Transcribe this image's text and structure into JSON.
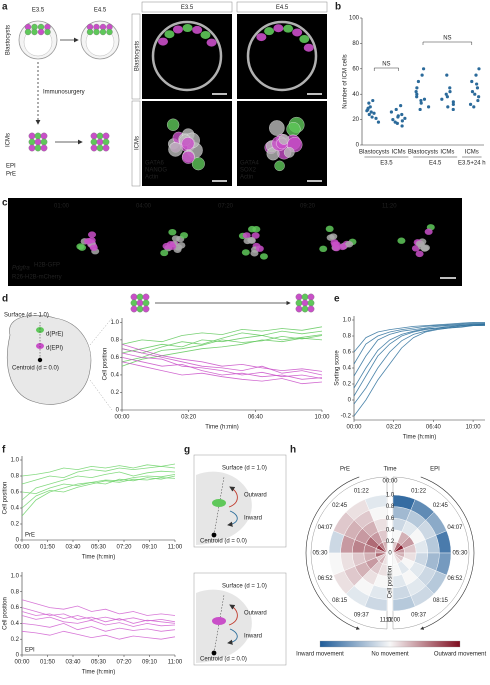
{
  "panel_a": {
    "letter": "a",
    "e35": "E3.5",
    "e45": "E4.5",
    "blastocysts": "Blastocysts",
    "immunosurgery": "Immunosurgery",
    "icms": "ICMs",
    "legend": [
      "EPI",
      "PrE"
    ],
    "col_headers": [
      "E3.5",
      "E4.5"
    ],
    "row_labels": [
      "Blastocysts",
      "ICMs"
    ],
    "stains": [
      [
        "GATA6",
        "NANOG",
        "Actin"
      ],
      [
        "GATA4",
        "SOX2",
        "Actin"
      ]
    ]
  },
  "panel_b": {
    "letter": "b",
    "type": "strip",
    "ylabel": "Number of ICM cells",
    "ylim": [
      0,
      100
    ],
    "yticks": [
      0,
      20,
      40,
      60,
      80,
      100
    ],
    "categories": [
      "Blastocysts",
      "ICMs",
      "Blastocysts",
      "ICMs",
      "ICMs"
    ],
    "groups": [
      "E3.5",
      "E4.5",
      "E3.5+24 h"
    ],
    "annotations": [
      "NS",
      "NS"
    ],
    "color": "#2b6a9a",
    "values": [
      [
        25,
        28,
        22,
        30,
        26,
        18,
        33,
        24,
        27,
        21,
        29,
        35
      ],
      [
        20,
        23,
        17,
        26,
        19,
        22,
        15,
        28,
        21,
        24,
        31,
        18
      ],
      [
        35,
        40,
        30,
        45,
        38,
        50,
        28,
        42,
        36,
        55,
        33,
        60
      ],
      [
        34,
        30,
        40,
        36,
        28,
        45,
        38,
        32,
        42,
        55
      ],
      [
        38,
        45,
        32,
        50,
        40,
        55,
        35,
        42,
        60,
        30,
        48
      ]
    ]
  },
  "panel_c": {
    "letter": "c",
    "times": [
      "01:00",
      "04:00",
      "07:20",
      "09:20",
      "11:20"
    ],
    "label1": "Pdgfra",
    "label1_sup": "H2B-GFP",
    "label2": "R26-H2B-mCherry"
  },
  "panel_d": {
    "letter": "d",
    "type": "line",
    "surface": "Surface (d = 1.0)",
    "centroid": "Centroid (d = 0.0)",
    "dpre": "d(PrE)",
    "depi": "d(EPI)",
    "ylabel": "Cell position",
    "xlabel": "Time (h:min)",
    "xlim": [
      0,
      600
    ],
    "ylim": [
      0,
      1.05
    ],
    "xticks": [
      {
        "value": 0,
        "label": "00:00"
      },
      {
        "value": 200,
        "label": "03:20"
      },
      {
        "value": 400,
        "label": "06:40"
      },
      {
        "value": 600,
        "label": "10:00"
      }
    ],
    "yticks": [
      0,
      0.2,
      0.4,
      0.6,
      0.8,
      {
        "value": 1,
        "label": "1.0"
      }
    ],
    "x": [
      0,
      60,
      120,
      180,
      240,
      300,
      360,
      420,
      480,
      540,
      600
    ],
    "series": [
      {
        "color": "#5fc85a",
        "values": [
          0.65,
          0.7,
          0.75,
          0.72,
          0.8,
          0.78,
          0.82,
          0.85,
          0.8,
          0.83,
          0.86
        ]
      },
      {
        "color": "#5fc85a",
        "values": [
          0.55,
          0.6,
          0.68,
          0.7,
          0.74,
          0.8,
          0.77,
          0.79,
          0.84,
          0.81,
          0.85
        ]
      },
      {
        "color": "#5fc85a",
        "values": [
          0.7,
          0.65,
          0.72,
          0.78,
          0.75,
          0.82,
          0.88,
          0.85,
          0.9,
          0.87,
          0.9
        ]
      },
      {
        "color": "#5fc85a",
        "values": [
          0.5,
          0.58,
          0.62,
          0.66,
          0.7,
          0.72,
          0.75,
          0.8,
          0.78,
          0.82,
          0.8
        ]
      },
      {
        "color": "#5fc85a",
        "values": [
          0.75,
          0.8,
          0.78,
          0.85,
          0.88,
          0.86,
          0.92,
          0.9,
          0.93,
          0.91,
          0.95
        ]
      },
      {
        "color": "#c94fc8",
        "values": [
          0.7,
          0.65,
          0.6,
          0.55,
          0.5,
          0.48,
          0.45,
          0.5,
          0.42,
          0.45,
          0.4
        ]
      },
      {
        "color": "#c94fc8",
        "values": [
          0.6,
          0.55,
          0.5,
          0.52,
          0.45,
          0.4,
          0.42,
          0.38,
          0.4,
          0.35,
          0.37
        ]
      },
      {
        "color": "#c94fc8",
        "values": [
          0.75,
          0.68,
          0.62,
          0.58,
          0.55,
          0.5,
          0.52,
          0.48,
          0.45,
          0.47,
          0.44
        ]
      },
      {
        "color": "#c94fc8",
        "values": [
          0.55,
          0.5,
          0.45,
          0.4,
          0.42,
          0.38,
          0.35,
          0.33,
          0.36,
          0.3,
          0.32
        ]
      },
      {
        "color": "#c94fc8",
        "values": [
          0.65,
          0.6,
          0.58,
          0.5,
          0.48,
          0.45,
          0.4,
          0.43,
          0.38,
          0.4,
          0.36
        ]
      }
    ]
  },
  "panel_e": {
    "letter": "e",
    "type": "line",
    "ylabel": "Sorting score",
    "xlabel": "Time (h:min)",
    "xlim": [
      0,
      660
    ],
    "ylim": [
      -0.25,
      1.05
    ],
    "xticks": [
      {
        "value": 0,
        "label": "00:00"
      },
      {
        "value": 200,
        "label": "03:20"
      },
      {
        "value": 400,
        "label": "06:40"
      },
      {
        "value": 600,
        "label": "10:00"
      }
    ],
    "yticks": [
      -0.2,
      0,
      0.2,
      0.4,
      0.6,
      0.8,
      {
        "value": 1,
        "label": "1.0"
      }
    ],
    "x": [
      0,
      60,
      120,
      180,
      240,
      300,
      360,
      420,
      480,
      540,
      600,
      660
    ],
    "series": [
      {
        "color": "#2c6e9b",
        "values": [
          0.45,
          0.7,
          0.8,
          0.85,
          0.88,
          0.9,
          0.92,
          0.93,
          0.94,
          0.95,
          0.96,
          0.96
        ]
      },
      {
        "color": "#2c6e9b",
        "values": [
          0.3,
          0.55,
          0.75,
          0.82,
          0.86,
          0.88,
          0.9,
          0.92,
          0.93,
          0.94,
          0.95,
          0.95
        ]
      },
      {
        "color": "#2c6e9b",
        "values": [
          0.15,
          0.4,
          0.62,
          0.75,
          0.82,
          0.86,
          0.89,
          0.9,
          0.92,
          0.93,
          0.94,
          0.95
        ]
      },
      {
        "color": "#2c6e9b",
        "values": [
          0.05,
          0.3,
          0.55,
          0.7,
          0.8,
          0.85,
          0.88,
          0.9,
          0.91,
          0.93,
          0.94,
          0.94
        ]
      },
      {
        "color": "#2c6e9b",
        "values": [
          -0.05,
          0.15,
          0.4,
          0.6,
          0.74,
          0.82,
          0.86,
          0.89,
          0.9,
          0.92,
          0.93,
          0.94
        ]
      },
      {
        "color": "#2c6e9b",
        "values": [
          -0.2,
          0.0,
          0.25,
          0.45,
          0.65,
          0.78,
          0.85,
          0.88,
          0.9,
          0.91,
          0.93,
          0.93
        ]
      },
      {
        "color": "#2c6e9b",
        "values": [
          0.6,
          0.78,
          0.85,
          0.88,
          0.9,
          0.92,
          0.93,
          0.94,
          0.95,
          0.96,
          0.97,
          0.97
        ]
      }
    ]
  },
  "panel_f": {
    "letter": "f",
    "charts": [
      {
        "type": "line",
        "label": "PrE",
        "ylabel": "Cell position",
        "xlabel": "Time (h:min)",
        "xlim": [
          0,
          660
        ],
        "ylim": [
          0,
          1.05
        ],
        "xticks": [
          {
            "value": 0,
            "label": "00:00"
          },
          {
            "value": 110,
            "label": "01:50"
          },
          {
            "value": 220,
            "label": "03:40"
          },
          {
            "value": 330,
            "label": "05:30"
          },
          {
            "value": 440,
            "label": "07:20"
          },
          {
            "value": 550,
            "label": "09:10"
          },
          {
            "value": 660,
            "label": "11:00"
          }
        ],
        "yticks": [
          0,
          0.2,
          0.4,
          0.6,
          0.8,
          {
            "value": 1,
            "label": "1.0"
          }
        ],
        "x": [
          0,
          60,
          120,
          180,
          240,
          300,
          360,
          420,
          480,
          540,
          600,
          660
        ],
        "series": [
          {
            "color": "#6fd36a",
            "values": [
              0.5,
              0.65,
              0.7,
              0.75,
              0.8,
              0.78,
              0.82,
              0.85,
              0.8,
              0.84,
              0.86,
              0.85
            ]
          },
          {
            "color": "#6fd36a",
            "values": [
              0.3,
              0.5,
              0.6,
              0.65,
              0.7,
              0.72,
              0.75,
              0.74,
              0.78,
              0.8,
              0.79,
              0.82
            ]
          },
          {
            "color": "#6fd36a",
            "values": [
              0.7,
              0.75,
              0.8,
              0.78,
              0.85,
              0.88,
              0.86,
              0.9,
              0.88,
              0.9,
              0.92,
              0.9
            ]
          },
          {
            "color": "#6fd36a",
            "values": [
              0.6,
              0.58,
              0.65,
              0.7,
              0.68,
              0.72,
              0.7,
              0.76,
              0.74,
              0.78,
              0.76,
              0.8
            ]
          },
          {
            "color": "#6fd36a",
            "values": [
              0.4,
              0.55,
              0.62,
              0.6,
              0.66,
              0.7,
              0.74,
              0.72,
              0.76,
              0.75,
              0.78,
              0.77
            ]
          },
          {
            "color": "#6fd36a",
            "values": [
              0.8,
              0.82,
              0.85,
              0.9,
              0.88,
              0.92,
              0.9,
              0.93,
              0.9,
              0.94,
              0.92,
              0.95
            ]
          }
        ]
      },
      {
        "type": "line",
        "label": "EPI",
        "ylabel": "Cell position",
        "xlabel": "Time (h:min)",
        "xlim": [
          0,
          660
        ],
        "ylim": [
          0,
          1.05
        ],
        "xticks": [
          {
            "value": 0,
            "label": "00:00"
          },
          {
            "value": 110,
            "label": "01:50"
          },
          {
            "value": 220,
            "label": "03:40"
          },
          {
            "value": 330,
            "label": "05:30"
          },
          {
            "value": 440,
            "label": "07:20"
          },
          {
            "value": 550,
            "label": "09:10"
          },
          {
            "value": 660,
            "label": "11:00"
          }
        ],
        "yticks": [
          0,
          0.2,
          0.4,
          0.6,
          0.8,
          {
            "value": 1,
            "label": "1.0"
          }
        ],
        "x": [
          0,
          60,
          120,
          180,
          240,
          300,
          360,
          420,
          480,
          540,
          600,
          660
        ],
        "series": [
          {
            "color": "#d05fd0",
            "values": [
              0.6,
              0.55,
              0.5,
              0.52,
              0.45,
              0.48,
              0.42,
              0.46,
              0.4,
              0.44,
              0.42,
              0.4
            ]
          },
          {
            "color": "#d05fd0",
            "values": [
              0.4,
              0.38,
              0.35,
              0.4,
              0.32,
              0.36,
              0.3,
              0.34,
              0.31,
              0.33,
              0.3,
              0.32
            ]
          },
          {
            "color": "#d05fd0",
            "values": [
              0.7,
              0.65,
              0.6,
              0.58,
              0.62,
              0.55,
              0.58,
              0.52,
              0.55,
              0.5,
              0.52,
              0.5
            ]
          },
          {
            "color": "#d05fd0",
            "values": [
              0.5,
              0.45,
              0.48,
              0.42,
              0.4,
              0.44,
              0.38,
              0.41,
              0.36,
              0.4,
              0.37,
              0.38
            ]
          },
          {
            "color": "#d05fd0",
            "values": [
              0.3,
              0.28,
              0.25,
              0.3,
              0.26,
              0.22,
              0.25,
              0.2,
              0.24,
              0.22,
              0.2,
              0.23
            ]
          },
          {
            "color": "#d05fd0",
            "values": [
              0.55,
              0.5,
              0.52,
              0.46,
              0.5,
              0.45,
              0.48,
              0.44,
              0.47,
              0.43,
              0.45,
              0.42
            ]
          }
        ]
      }
    ]
  },
  "panel_g": {
    "letter": "g",
    "surface": "Surface (d = 1.0)",
    "outward": "Outward",
    "inward": "Inward",
    "centroid": "Centroid (d = 0.0)"
  },
  "panel_h": {
    "letter": "h",
    "type": "polar_heatmap",
    "time_title": "Time",
    "start": "00:00",
    "times": [
      "01:22",
      "02:45",
      "04:07",
      "05:30",
      "06:52",
      "08:15",
      "09:37",
      "11:00"
    ],
    "rlabel": "Cell position",
    "rticks": [
      0,
      0.2,
      0.4,
      0.6,
      0.8,
      {
        "value": 1,
        "label": "1.0"
      }
    ],
    "colorbar": [
      "Inward movement",
      "No movement",
      "Outward movement"
    ],
    "colorscale": [
      "#1f5c99",
      "#f7f7f7",
      "#7f0d1f"
    ],
    "halves": [
      {
        "name": "PrE",
        "color": "#3fae3a",
        "values": [
          [
            0.3,
            0.5,
            0.8,
            0.4,
            0.6,
            0.2,
            0.3,
            0.1
          ],
          [
            0.2,
            0.4,
            0.6,
            0.5,
            0.3,
            0.4,
            0.2,
            0.1
          ],
          [
            0.1,
            0.3,
            0.4,
            0.5,
            0.2,
            0.3,
            0.1,
            0
          ],
          [
            0,
            0.2,
            0.3,
            0.4,
            0.1,
            0.2,
            0,
            -0.1
          ],
          [
            -0.1,
            0.1,
            0.2,
            -0.2,
            0,
            0.1,
            -0.1,
            -0.2
          ]
        ]
      },
      {
        "name": "EPI",
        "color": "#b03fb0",
        "values": [
          [
            0.2,
            0.6,
            0.9,
            0.4,
            0.3,
            0.2,
            0.1,
            0
          ],
          [
            0,
            0.3,
            0.4,
            0.2,
            0.1,
            0,
            -0.1,
            0
          ],
          [
            -0.2,
            -0.1,
            0,
            -0.1,
            -0.2,
            -0.1,
            0,
            -0.1
          ],
          [
            -0.4,
            -0.3,
            -0.2,
            -0.3,
            -0.4,
            -0.2,
            -0.1,
            -0.2
          ],
          [
            -0.9,
            -0.7,
            -0.5,
            -0.8,
            -0.6,
            -0.3,
            -0.2,
            -0.3
          ]
        ]
      }
    ]
  }
}
